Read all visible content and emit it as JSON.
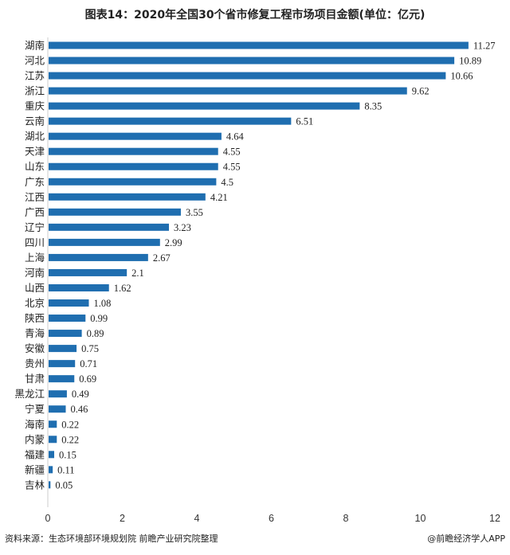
{
  "chart_data": {
    "type": "bar",
    "orientation": "horizontal",
    "title": "图表14：2020年全国30个省市修复工程市场项目金额(单位：亿元)",
    "categories": [
      "湖南",
      "河北",
      "江苏",
      "浙江",
      "重庆",
      "云南",
      "湖北",
      "天津",
      "山东",
      "广东",
      "江西",
      "广西",
      "辽宁",
      "四川",
      "上海",
      "河南",
      "山西",
      "北京",
      "陕西",
      "青海",
      "安徽",
      "贵州",
      "甘肃",
      "黑龙江",
      "宁夏",
      "海南",
      "内蒙",
      "福建",
      "新疆",
      "吉林"
    ],
    "values": [
      11.27,
      10.89,
      10.66,
      9.62,
      8.35,
      6.51,
      4.64,
      4.55,
      4.55,
      4.5,
      4.21,
      3.55,
      3.23,
      2.99,
      2.67,
      2.1,
      1.62,
      1.08,
      0.99,
      0.89,
      0.75,
      0.71,
      0.69,
      0.49,
      0.46,
      0.22,
      0.22,
      0.15,
      0.11,
      0.05
    ],
    "value_labels": [
      "11.27",
      "10.89",
      "10.66",
      "9.62",
      "8.35",
      "6.51",
      "4.64",
      "4.55",
      "4.55",
      "4.5",
      "4.21",
      "3.55",
      "3.23",
      "2.99",
      "2.67",
      "2.1",
      "1.62",
      "1.08",
      "0.99",
      "0.89",
      "0.75",
      "0.71",
      "0.69",
      "0.49",
      "0.46",
      "0.22",
      "0.22",
      "0.15",
      "0.11",
      "0.05"
    ],
    "xlim": [
      0,
      12
    ],
    "xticks": [
      "0",
      "2",
      "4",
      "6",
      "8",
      "10",
      "12"
    ],
    "xlabel": "",
    "ylabel": "",
    "grid": false,
    "bar_color": "#1f6eb0"
  },
  "footer": {
    "source": "资料来源：生态环境部环境规划院 前瞻产业研究院整理",
    "credit": "@前瞻经济学人APP"
  }
}
